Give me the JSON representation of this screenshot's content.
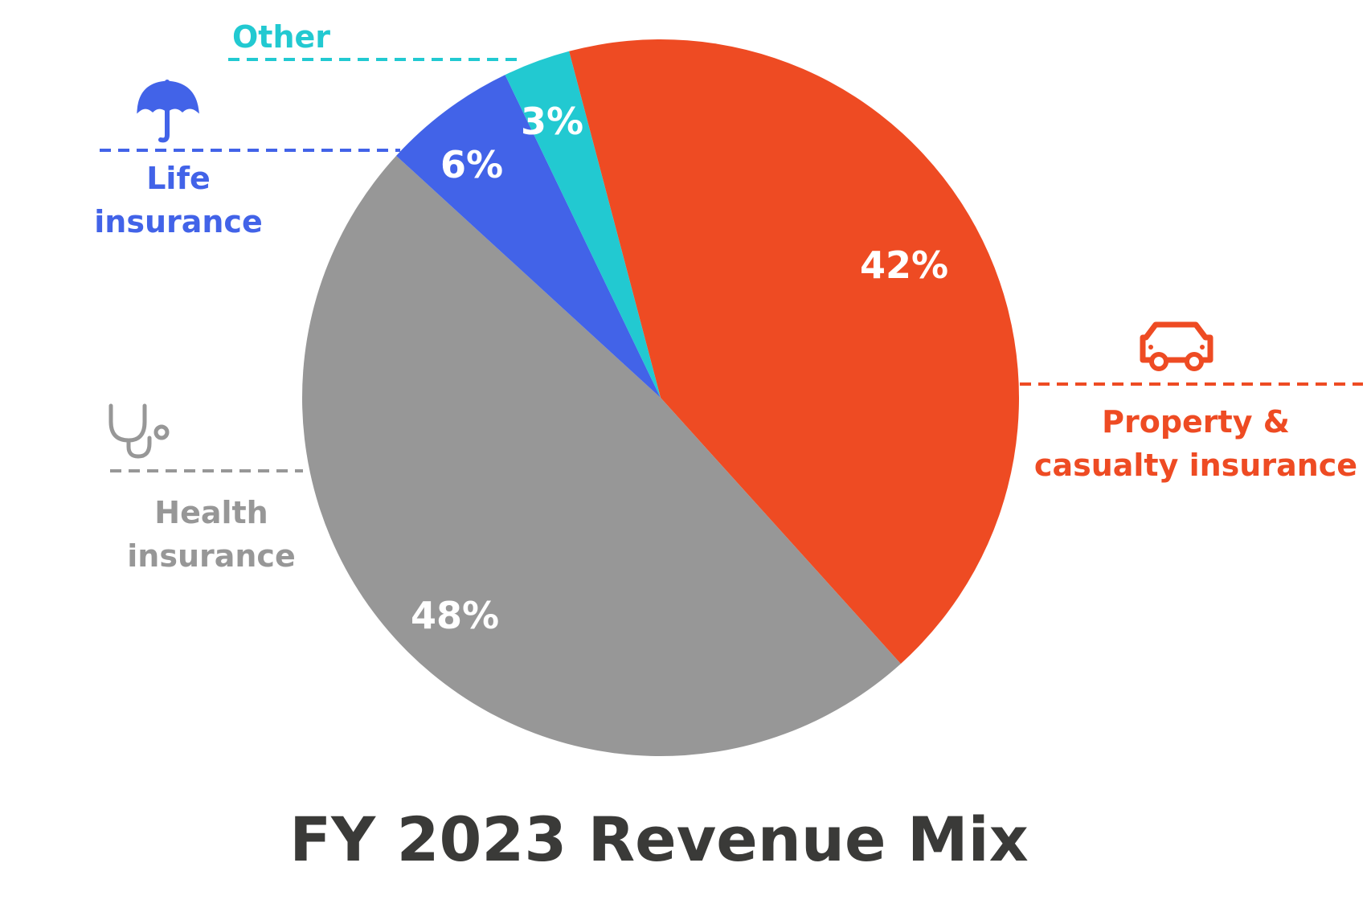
{
  "chart_data": {
    "type": "pie",
    "title": "FY 2023 Revenue Mix",
    "categories": [
      "Property & casualty insurance",
      "Health insurance",
      "Life insurance",
      "Other"
    ],
    "values": [
      42,
      48,
      6,
      3
    ],
    "value_labels": [
      "42%",
      "48%",
      "6%",
      "3%"
    ],
    "colors": [
      "#ee4b23",
      "#979797",
      "#4263e8",
      "#22c9d1"
    ]
  }
}
